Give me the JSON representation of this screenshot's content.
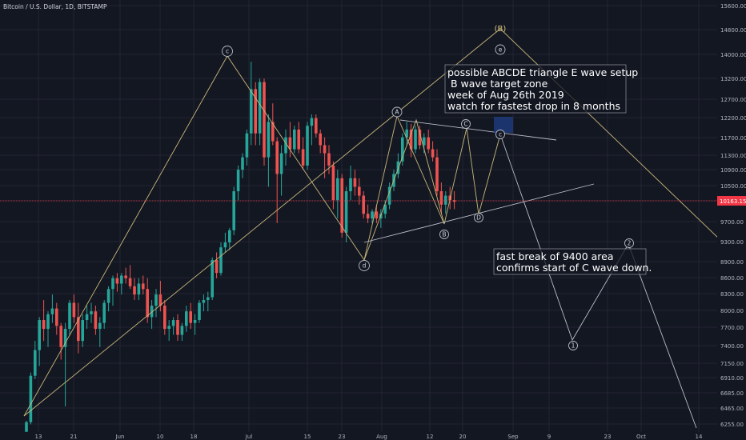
{
  "header": {
    "title": "Bitcoin / U.S. Dollar, 1D, BITSTAMP"
  },
  "chart_data": {
    "type": "candlestick",
    "x_tick_labels": [
      "13",
      "21",
      "Jun",
      "10",
      "18",
      "Jul",
      "15",
      "23",
      "Aug",
      "12",
      "20",
      "Sep",
      "9",
      "23",
      "Oct",
      "14"
    ],
    "y_tick_labels": [
      "15600.00",
      "14800.00",
      "14000.00",
      "13200.00",
      "12700.00",
      "12200.00",
      "11700.00",
      "11300.00",
      "10900.00",
      "10500.00",
      "10163.15",
      "9700.00",
      "9300.00",
      "8900.00",
      "8600.00",
      "8300.00",
      "8000.00",
      "7700.00",
      "7400.00",
      "7150.00",
      "6910.00",
      "6685.00",
      "6465.00",
      "6255.00"
    ],
    "last_price": {
      "value": 10163.15,
      "label": "10163.15",
      "color": "#f23645"
    },
    "up_color": "#26a69a",
    "down_color": "#ef5350",
    "candles": [
      [
        6150,
        6300,
        6130,
        6280
      ],
      [
        6280,
        7000,
        6250,
        6950
      ],
      [
        6950,
        7500,
        6900,
        7350
      ],
      [
        7350,
        7900,
        7100,
        7850
      ],
      [
        7850,
        8200,
        7500,
        7700
      ],
      [
        7700,
        8000,
        7400,
        7950
      ],
      [
        7950,
        8300,
        7800,
        8050
      ],
      [
        8050,
        8150,
        7600,
        7750
      ],
      [
        7750,
        7800,
        7200,
        7400
      ],
      [
        7400,
        7800,
        6500,
        7700
      ],
      [
        7700,
        8200,
        7600,
        8150
      ],
      [
        8150,
        8300,
        7800,
        7900
      ],
      [
        7900,
        8150,
        7300,
        7500
      ],
      [
        7500,
        7950,
        7400,
        7850
      ],
      [
        7850,
        8100,
        7700,
        7950
      ],
      [
        7950,
        8150,
        7800,
        8000
      ],
      [
        8000,
        8100,
        7600,
        7700
      ],
      [
        7700,
        7900,
        7400,
        7800
      ],
      [
        7800,
        8200,
        7700,
        8150
      ],
      [
        8150,
        8450,
        8000,
        8400
      ],
      [
        8400,
        8650,
        8100,
        8600
      ],
      [
        8600,
        8700,
        8350,
        8500
      ],
      [
        8500,
        8700,
        8300,
        8650
      ],
      [
        8650,
        8800,
        8500,
        8600
      ],
      [
        8600,
        8850,
        8400,
        8450
      ],
      [
        8450,
        8600,
        8200,
        8300
      ],
      [
        8300,
        8600,
        8200,
        8500
      ],
      [
        8500,
        8650,
        8300,
        8400
      ],
      [
        8400,
        8600,
        7800,
        7900
      ],
      [
        7900,
        8200,
        7700,
        8100
      ],
      [
        8100,
        8400,
        7900,
        8300
      ],
      [
        8300,
        8550,
        8000,
        8100
      ],
      [
        8100,
        8200,
        7600,
        7700
      ],
      [
        7700,
        7850,
        7500,
        7750
      ],
      [
        7750,
        7900,
        7600,
        7850
      ],
      [
        7850,
        7950,
        7500,
        7600
      ],
      [
        7600,
        7800,
        7500,
        7750
      ],
      [
        7750,
        8100,
        7650,
        8000
      ],
      [
        8000,
        8150,
        7700,
        7800
      ],
      [
        7800,
        7950,
        7600,
        7850
      ],
      [
        7850,
        8200,
        7800,
        8150
      ],
      [
        8150,
        8300,
        8000,
        8200
      ],
      [
        8200,
        8350,
        8000,
        8250
      ],
      [
        8250,
        9000,
        8200,
        8950
      ],
      [
        8950,
        9100,
        8600,
        8700
      ],
      [
        8700,
        9300,
        8650,
        9200
      ],
      [
        9200,
        9500,
        9100,
        9300
      ],
      [
        9300,
        9600,
        9150,
        9550
      ],
      [
        9550,
        10500,
        9450,
        10400
      ],
      [
        10400,
        11000,
        10200,
        10900
      ],
      [
        10900,
        11300,
        10700,
        11200
      ],
      [
        11200,
        11900,
        11000,
        11800
      ],
      [
        11800,
        13800,
        11500,
        13000
      ],
      [
        13000,
        13200,
        11500,
        11800
      ],
      [
        11800,
        13300,
        11500,
        13200
      ],
      [
        13200,
        13300,
        11000,
        11200
      ],
      [
        11200,
        12300,
        10500,
        12100
      ],
      [
        12100,
        12600,
        11500,
        11600
      ],
      [
        11600,
        11700,
        9700,
        10800
      ],
      [
        10800,
        11500,
        10300,
        11300
      ],
      [
        11300,
        11900,
        11000,
        11700
      ],
      [
        11700,
        12100,
        11200,
        11400
      ],
      [
        11400,
        12000,
        11300,
        11900
      ],
      [
        11900,
        12100,
        11300,
        11400
      ],
      [
        11400,
        11700,
        10900,
        11000
      ],
      [
        11000,
        12100,
        10900,
        12000
      ],
      [
        12000,
        12300,
        11500,
        12200
      ],
      [
        12200,
        12300,
        11700,
        11800
      ],
      [
        11800,
        11900,
        11300,
        11500
      ],
      [
        11500,
        11700,
        10700,
        11300
      ],
      [
        11300,
        11500,
        10800,
        11000
      ],
      [
        11000,
        11100,
        10000,
        10200
      ],
      [
        10200,
        10900,
        9800,
        10700
      ],
      [
        10700,
        10800,
        9400,
        9500
      ],
      [
        9500,
        10500,
        9300,
        10400
      ],
      [
        10400,
        11000,
        10200,
        10700
      ],
      [
        10700,
        10900,
        10300,
        10500
      ],
      [
        10500,
        10700,
        10100,
        10300
      ],
      [
        10300,
        10400,
        9800,
        9900
      ],
      [
        9900,
        10100,
        9700,
        9800
      ],
      [
        9800,
        10000,
        9700,
        9950
      ],
      [
        9950,
        10100,
        9700,
        9800
      ],
      [
        9800,
        10000,
        9600,
        9900
      ],
      [
        9900,
        10200,
        9800,
        10100
      ],
      [
        10100,
        10600,
        10000,
        10500
      ],
      [
        10500,
        10900,
        10400,
        10800
      ],
      [
        10800,
        11300,
        10700,
        11100
      ],
      [
        11100,
        11800,
        11000,
        11700
      ],
      [
        11700,
        12100,
        11500,
        11900
      ],
      [
        11900,
        12050,
        11200,
        11400
      ],
      [
        11400,
        12000,
        11300,
        11900
      ],
      [
        11900,
        12000,
        11400,
        11500
      ],
      [
        11500,
        11800,
        11300,
        11700
      ],
      [
        11700,
        11900,
        11300,
        11400
      ],
      [
        11400,
        11600,
        11100,
        11200
      ],
      [
        11200,
        11400,
        10300,
        10400
      ],
      [
        10400,
        10600,
        9900,
        10100
      ],
      [
        10100,
        10400,
        9900,
        10300
      ],
      [
        10300,
        10500,
        10000,
        10200
      ],
      [
        10200,
        10400,
        10000,
        10163
      ]
    ],
    "annotations": {
      "projection_label": "(B)",
      "wave_labels": [
        "c",
        "A",
        "C",
        "e",
        "c",
        "d",
        "B",
        "D",
        "1",
        "2"
      ],
      "text_box_1": [
        "possible ABCDE triangle E wave setup",
        " B wave target zone",
        "week of Aug 26th 2019",
        "watch for fastest drop in 8 months"
      ],
      "text_box_2": [
        "fast break of 9400 area",
        "confirms start of C wave down."
      ],
      "line_colors": {
        "tan": "#c9b77a",
        "white": "#b8bcc6",
        "label_gold": "#d5c07d",
        "zone": "#1f3a7a"
      }
    }
  }
}
